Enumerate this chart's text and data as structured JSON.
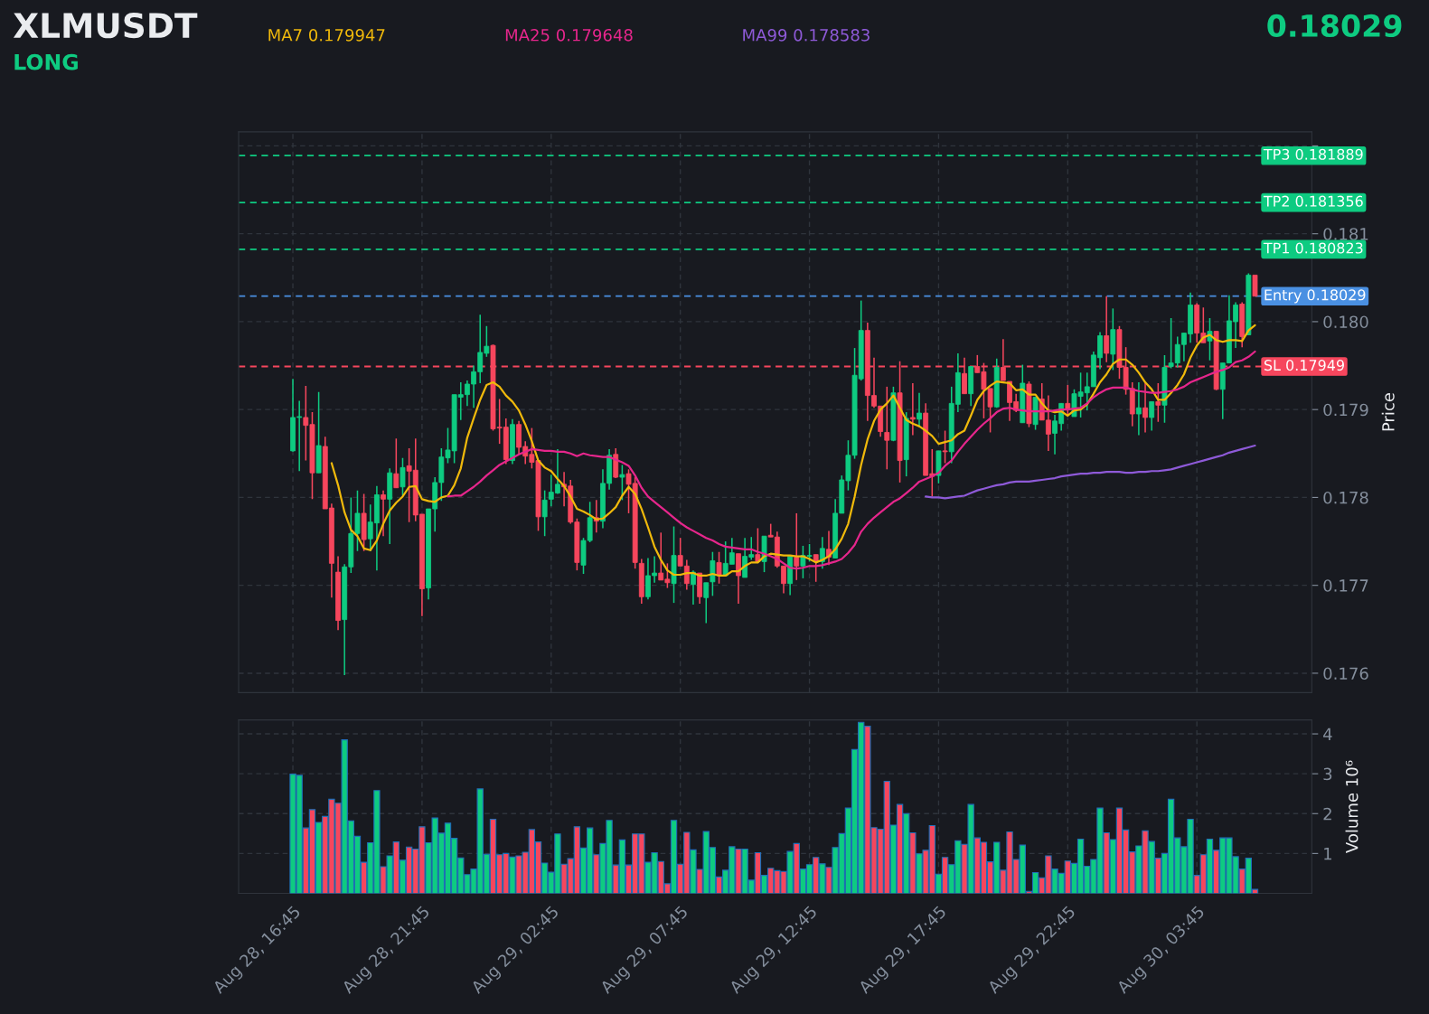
{
  "chart_data": [
    {
      "type": "candlestick",
      "title": "XLMUSDT",
      "annotations": [
        "LONG",
        "0.18029"
      ],
      "ylabel": "Price",
      "categories": [
        null,
        null,
        null,
        null,
        null,
        null,
        null,
        null,
        null,
        null,
        null,
        null,
        null,
        null,
        null,
        null,
        null,
        null,
        null,
        null,
        null,
        null,
        null,
        null,
        null,
        null,
        null,
        null,
        null,
        null,
        null,
        null,
        null,
        null,
        null,
        null,
        null,
        null,
        null,
        null,
        null,
        null,
        null,
        null,
        null,
        null,
        null,
        null,
        null,
        null,
        null,
        null,
        null,
        null,
        null,
        null,
        null,
        null,
        null,
        null,
        null,
        null,
        null,
        null,
        null,
        null,
        null,
        null,
        null,
        null,
        null,
        null,
        null,
        null,
        null,
        null,
        null,
        null,
        null,
        null,
        null,
        null,
        null,
        null,
        null,
        null,
        null,
        null,
        null,
        null,
        null,
        null,
        null,
        null,
        null,
        null,
        null,
        null,
        null,
        null,
        null,
        null,
        null,
        null,
        null,
        null,
        null,
        null,
        null,
        null,
        null,
        null,
        null,
        null,
        null,
        null,
        null,
        null,
        null,
        null,
        null,
        null,
        null,
        null,
        null,
        null,
        null,
        null,
        null,
        null,
        null,
        null,
        null,
        null,
        null,
        null,
        null,
        null,
        null,
        null,
        null,
        null,
        null,
        null,
        null,
        null,
        null,
        null,
        null,
        null
      ],
      "ohlc": [
        [
          0.17853,
          0.17935,
          0.17852,
          0.17891
        ],
        [
          0.17891,
          0.1791,
          0.1783,
          0.17892
        ],
        [
          0.17891,
          0.17927,
          0.17842,
          0.17882
        ],
        [
          0.17883,
          0.17897,
          0.17798,
          0.17828
        ],
        [
          0.17828,
          0.1792,
          0.17828,
          0.17859
        ],
        [
          0.17858,
          0.17869,
          0.17787,
          0.17787
        ],
        [
          0.17788,
          0.17793,
          0.17686,
          0.17725
        ],
        [
          0.17715,
          0.17733,
          0.17649,
          0.1766
        ],
        [
          0.17661,
          0.17724,
          0.17598,
          0.17721
        ],
        [
          0.17721,
          0.178,
          0.17714,
          0.17759
        ],
        [
          0.17759,
          0.17808,
          0.17739,
          0.17782
        ],
        [
          0.17782,
          0.17804,
          0.17739,
          0.17752
        ],
        [
          0.17753,
          0.17792,
          0.17739,
          0.17772
        ],
        [
          0.17771,
          0.17813,
          0.17717,
          0.17803
        ],
        [
          0.17803,
          0.17808,
          0.17756,
          0.17798
        ],
        [
          0.17798,
          0.17833,
          0.17747,
          0.17828
        ],
        [
          0.17827,
          0.17867,
          0.17811,
          0.17811
        ],
        [
          0.17812,
          0.17845,
          0.17802,
          0.17834
        ],
        [
          0.17836,
          0.17856,
          0.17772,
          0.1783
        ],
        [
          0.17831,
          0.17867,
          0.17773,
          0.1778
        ],
        [
          0.17781,
          0.17781,
          0.17665,
          0.17696
        ],
        [
          0.17697,
          0.17787,
          0.17684,
          0.17787
        ],
        [
          0.17787,
          0.17823,
          0.17761,
          0.17817
        ],
        [
          0.17817,
          0.17856,
          0.17796,
          0.17846
        ],
        [
          0.17845,
          0.17879,
          0.17839,
          0.17854
        ],
        [
          0.17853,
          0.17917,
          0.17839,
          0.17917
        ],
        [
          0.17914,
          0.17931,
          0.17888,
          0.17917
        ],
        [
          0.17917,
          0.17933,
          0.17904,
          0.17929
        ],
        [
          0.17929,
          0.1795,
          0.17902,
          0.17943
        ],
        [
          0.17943,
          0.18008,
          0.1793,
          0.17965
        ],
        [
          0.17964,
          0.17995,
          0.1796,
          0.17972
        ],
        [
          0.17973,
          0.17974,
          0.17876,
          0.17878
        ],
        [
          0.1788,
          0.17912,
          0.17861,
          0.17879
        ],
        [
          0.1788,
          0.1789,
          0.17838,
          0.17843
        ],
        [
          0.17842,
          0.17889,
          0.17838,
          0.17883
        ],
        [
          0.17883,
          0.17887,
          0.17849,
          0.17857
        ],
        [
          0.17858,
          0.17864,
          0.17838,
          0.17847
        ],
        [
          0.17849,
          0.17879,
          0.17833,
          0.1784
        ],
        [
          0.17842,
          0.17842,
          0.17762,
          0.17778
        ],
        [
          0.17778,
          0.17808,
          0.17756,
          0.17797
        ],
        [
          0.17798,
          0.17826,
          0.1779,
          0.17806
        ],
        [
          0.17805,
          0.17855,
          0.17804,
          0.17815
        ],
        [
          0.17815,
          0.17829,
          0.1779,
          0.17812
        ],
        [
          0.17813,
          0.1782,
          0.1777,
          0.17772
        ],
        [
          0.17772,
          0.17776,
          0.17717,
          0.17726
        ],
        [
          0.17723,
          0.17754,
          0.17713,
          0.17751
        ],
        [
          0.17751,
          0.17795,
          0.17749,
          0.17777
        ],
        [
          0.17777,
          0.17797,
          0.1776,
          0.17773
        ],
        [
          0.17773,
          0.17832,
          0.17765,
          0.17816
        ],
        [
          0.17816,
          0.17855,
          0.17809,
          0.17848
        ],
        [
          0.17849,
          0.17856,
          0.17822,
          0.17823
        ],
        [
          0.17823,
          0.17837,
          0.17797,
          0.17826
        ],
        [
          0.17827,
          0.17832,
          0.17782,
          0.17815
        ],
        [
          0.17816,
          0.17823,
          0.17719,
          0.17726
        ],
        [
          0.17725,
          0.1773,
          0.17679,
          0.17687
        ],
        [
          0.17687,
          0.17731,
          0.17684,
          0.17711
        ],
        [
          0.17711,
          0.17733,
          0.17703,
          0.17714
        ],
        [
          0.17714,
          0.1776,
          0.17706,
          0.17706
        ],
        [
          0.17707,
          0.17725,
          0.17697,
          0.17703
        ],
        [
          0.17702,
          0.17767,
          0.1768,
          0.17734
        ],
        [
          0.17734,
          0.17754,
          0.17722,
          0.17722
        ],
        [
          0.17722,
          0.17729,
          0.17695,
          0.17702
        ],
        [
          0.17701,
          0.17717,
          0.17678,
          0.17715
        ],
        [
          0.17714,
          0.17714,
          0.17679,
          0.17687
        ],
        [
          0.17686,
          0.17703,
          0.17657,
          0.17703
        ],
        [
          0.17704,
          0.17738,
          0.17688,
          0.17728
        ],
        [
          0.17726,
          0.17738,
          0.17702,
          0.17711
        ],
        [
          0.17711,
          0.1775,
          0.17711,
          0.17725
        ],
        [
          0.17724,
          0.17754,
          0.17724,
          0.17737
        ],
        [
          0.17736,
          0.17736,
          0.17679,
          0.17711
        ],
        [
          0.17709,
          0.17754,
          0.17709,
          0.17733
        ],
        [
          0.17732,
          0.17755,
          0.17729,
          0.17735
        ],
        [
          0.17735,
          0.17765,
          0.17727,
          0.17727
        ],
        [
          0.17727,
          0.17756,
          0.17715,
          0.17756
        ],
        [
          0.17757,
          0.1777,
          0.17755,
          0.17755
        ],
        [
          0.17755,
          0.17761,
          0.1772,
          0.17722
        ],
        [
          0.17722,
          0.17722,
          0.17691,
          0.17702
        ],
        [
          0.17702,
          0.17733,
          0.17689,
          0.17733
        ],
        [
          0.17732,
          0.17782,
          0.17706,
          0.17722
        ],
        [
          0.17722,
          0.17745,
          0.17708,
          0.17734
        ],
        [
          0.17733,
          0.17747,
          0.17727,
          0.17734
        ],
        [
          0.17735,
          0.17735,
          0.17704,
          0.17727
        ],
        [
          0.17727,
          0.17755,
          0.17719,
          0.17742
        ],
        [
          0.17741,
          0.17762,
          0.17723,
          0.17732
        ],
        [
          0.17731,
          0.17798,
          0.17731,
          0.17782
        ],
        [
          0.17782,
          0.17825,
          0.17782,
          0.1782
        ],
        [
          0.17819,
          0.17865,
          0.17808,
          0.17848
        ],
        [
          0.17848,
          0.1797,
          0.17844,
          0.17939
        ],
        [
          0.17935,
          0.18024,
          0.17933,
          0.1799
        ],
        [
          0.1799,
          0.17999,
          0.17887,
          0.17916
        ],
        [
          0.17916,
          0.17959,
          0.17902,
          0.17904
        ],
        [
          0.17904,
          0.17904,
          0.17869,
          0.17875
        ],
        [
          0.17874,
          0.17926,
          0.17832,
          0.17865
        ],
        [
          0.17865,
          0.17926,
          0.17864,
          0.17919
        ],
        [
          0.17919,
          0.17955,
          0.17817,
          0.17842
        ],
        [
          0.17843,
          0.17897,
          0.17824,
          0.1789
        ],
        [
          0.17891,
          0.1793,
          0.17871,
          0.17889
        ],
        [
          0.17889,
          0.17919,
          0.1788,
          0.17896
        ],
        [
          0.17896,
          0.17907,
          0.17825,
          0.17825
        ],
        [
          0.17827,
          0.17855,
          0.17801,
          0.17824
        ],
        [
          0.17825,
          0.17853,
          0.17816,
          0.17853
        ],
        [
          0.17853,
          0.17876,
          0.17839,
          0.17852
        ],
        [
          0.17852,
          0.17926,
          0.17839,
          0.17907
        ],
        [
          0.17906,
          0.17964,
          0.17897,
          0.17942
        ],
        [
          0.17941,
          0.17959,
          0.17918,
          0.17918
        ],
        [
          0.17918,
          0.17949,
          0.17904,
          0.17949
        ],
        [
          0.17949,
          0.17962,
          0.17942,
          0.17942
        ],
        [
          0.17943,
          0.17953,
          0.1789,
          0.17923
        ],
        [
          0.17924,
          0.17924,
          0.17874,
          0.17903
        ],
        [
          0.17903,
          0.17958,
          0.17902,
          0.17948
        ],
        [
          0.17948,
          0.1798,
          0.17933,
          0.17933
        ],
        [
          0.17932,
          0.17932,
          0.17887,
          0.17908
        ],
        [
          0.17909,
          0.17918,
          0.17897,
          0.17899
        ],
        [
          0.17885,
          0.17951,
          0.17885,
          0.1793
        ],
        [
          0.17929,
          0.17932,
          0.1788,
          0.17884
        ],
        [
          0.17883,
          0.17914,
          0.17877,
          0.17914
        ],
        [
          0.17912,
          0.1793,
          0.17888,
          0.17888
        ],
        [
          0.17888,
          0.17916,
          0.17853,
          0.17872
        ],
        [
          0.17873,
          0.17894,
          0.17849,
          0.17887
        ],
        [
          0.17884,
          0.17907,
          0.17876,
          0.17907
        ],
        [
          0.17907,
          0.17928,
          0.17893,
          0.179
        ],
        [
          0.17892,
          0.17923,
          0.17892,
          0.17918
        ],
        [
          0.17915,
          0.17942,
          0.17891,
          0.1792
        ],
        [
          0.17919,
          0.17942,
          0.17899,
          0.17926
        ],
        [
          0.17926,
          0.17966,
          0.17926,
          0.17962
        ],
        [
          0.17959,
          0.17988,
          0.17946,
          0.17984
        ],
        [
          0.17984,
          0.18029,
          0.17954,
          0.17964
        ],
        [
          0.17963,
          0.18015,
          0.17945,
          0.17991
        ],
        [
          0.17991,
          0.17995,
          0.17935,
          0.17948
        ],
        [
          0.17948,
          0.17971,
          0.17917,
          0.17923
        ],
        [
          0.17924,
          0.17931,
          0.17881,
          0.17895
        ],
        [
          0.17895,
          0.17931,
          0.17871,
          0.17902
        ],
        [
          0.17902,
          0.1793,
          0.17874,
          0.17891
        ],
        [
          0.17891,
          0.17909,
          0.17876,
          0.17909
        ],
        [
          0.17909,
          0.1793,
          0.17886,
          0.17905
        ],
        [
          0.17905,
          0.17962,
          0.17885,
          0.17948
        ],
        [
          0.17949,
          0.18004,
          0.17947,
          0.17953
        ],
        [
          0.17953,
          0.17983,
          0.17948,
          0.17974
        ],
        [
          0.17974,
          0.17987,
          0.17955,
          0.17987
        ],
        [
          0.17986,
          0.18033,
          0.17976,
          0.18019
        ],
        [
          0.18019,
          0.18021,
          0.17976,
          0.17987
        ],
        [
          0.17987,
          0.18016,
          0.17976,
          0.17976
        ],
        [
          0.17978,
          0.18004,
          0.17956,
          0.17989
        ],
        [
          0.17989,
          0.17989,
          0.17922,
          0.17923
        ],
        [
          0.17923,
          0.17953,
          0.17889,
          0.17953
        ],
        [
          0.17953,
          0.1803,
          0.17953,
          0.18001
        ],
        [
          0.18,
          0.18022,
          0.1797,
          0.18019
        ],
        [
          0.1802,
          0.18022,
          0.17971,
          0.17983
        ],
        [
          0.17985,
          0.18055,
          0.17985,
          0.18053
        ],
        [
          0.18053,
          0.18053,
          0.18029,
          0.18029
        ]
      ],
      "colors": [
        "#0ecb81",
        "#0ecb81",
        "#f6465d",
        "#f6465d",
        "#0ecb81",
        "#f6465d",
        "#f6465d",
        "#f6465d",
        "#0ecb81",
        "#0ecb81",
        "#0ecb81",
        "#f6465d",
        "#0ecb81",
        "#0ecb81",
        "#f6465d",
        "#0ecb81",
        "#f6465d",
        "#0ecb81",
        "#f6465d",
        "#f6465d",
        "#f6465d",
        "#0ecb81",
        "#0ecb81",
        "#0ecb81",
        "#0ecb81",
        "#0ecb81",
        "#0ecb81",
        "#0ecb81",
        "#0ecb81",
        "#0ecb81",
        "#0ecb81",
        "#f6465d",
        "#f6465d",
        "#f6465d",
        "#0ecb81",
        "#f6465d",
        "#f6465d",
        "#f6465d",
        "#f6465d",
        "#0ecb81",
        "#0ecb81",
        "#0ecb81",
        "#f6465d",
        "#f6465d",
        "#f6465d",
        "#0ecb81",
        "#0ecb81",
        "#f6465d",
        "#0ecb81",
        "#0ecb81",
        "#f6465d",
        "#0ecb81",
        "#f6465d",
        "#f6465d",
        "#f6465d",
        "#0ecb81",
        "#0ecb81",
        "#f6465d",
        "#f6465d",
        "#0ecb81",
        "#f6465d",
        "#f6465d",
        "#0ecb81",
        "#f6465d",
        "#0ecb81",
        "#0ecb81",
        "#f6465d",
        "#0ecb81",
        "#0ecb81",
        "#f6465d",
        "#0ecb81",
        "#0ecb81",
        "#f6465d",
        "#0ecb81",
        "#f6465d",
        "#f6465d",
        "#f6465d",
        "#0ecb81",
        "#f6465d",
        "#0ecb81",
        "#0ecb81",
        "#f6465d",
        "#0ecb81",
        "#f6465d",
        "#0ecb81",
        "#0ecb81",
        "#0ecb81",
        "#0ecb81",
        "#0ecb81",
        "#f6465d",
        "#f6465d",
        "#f6465d",
        "#f6465d",
        "#0ecb81",
        "#f6465d",
        "#0ecb81",
        "#f6465d",
        "#0ecb81",
        "#f6465d",
        "#f6465d",
        "#0ecb81",
        "#f6465d",
        "#0ecb81",
        "#0ecb81",
        "#f6465d",
        "#0ecb81",
        "#f6465d",
        "#f6465d",
        "#f6465d",
        "#0ecb81",
        "#f6465d",
        "#f6465d",
        "#f6465d",
        "#0ecb81",
        "#f6465d",
        "#0ecb81",
        "#f6465d",
        "#f6465d",
        "#0ecb81",
        "#0ecb81",
        "#f6465d",
        "#0ecb81",
        "#0ecb81",
        "#0ecb81",
        "#0ecb81",
        "#0ecb81",
        "#f6465d",
        "#0ecb81",
        "#f6465d",
        "#f6465d",
        "#f6465d",
        "#0ecb81",
        "#f6465d",
        "#0ecb81",
        "#f6465d",
        "#0ecb81",
        "#0ecb81",
        "#0ecb81",
        "#0ecb81",
        "#0ecb81",
        "#f6465d",
        "#f6465d",
        "#0ecb81",
        "#f6465d",
        "#0ecb81",
        "#0ecb81",
        "#0ecb81",
        "#f6465d",
        "#0ecb81",
        "#f6465d"
      ],
      "series": [
        {
          "name": "MA7 0.179947",
          "type": "line",
          "color": "#f0b90b",
          "values": [
            null,
            null,
            null,
            null,
            null,
            null,
            0.17839,
            0.17814,
            0.17783,
            0.17763,
            0.17756,
            0.17742,
            0.1774,
            0.17751,
            0.1777,
            0.17785,
            0.17794,
            0.17801,
            0.17812,
            0.17813,
            0.17798,
            0.17796,
            0.17795,
            0.178,
            0.17802,
            0.17814,
            0.17833,
            0.17868,
            0.1789,
            0.17911,
            0.17928,
            0.17931,
            0.17926,
            0.17916,
            0.17909,
            0.17899,
            0.17883,
            0.17864,
            0.17842,
            0.17834,
            0.1783,
            0.17821,
            0.17813,
            0.17801,
            0.17787,
            0.17784,
            0.1778,
            0.17775,
            0.17776,
            0.17782,
            0.17789,
            0.17802,
            0.17812,
            0.17804,
            0.17787,
            0.17766,
            0.17744,
            0.17729,
            0.17717,
            0.17712,
            0.17712,
            0.17714,
            0.17714,
            0.17711,
            0.17711,
            0.17713,
            0.17711,
            0.17711,
            0.17716,
            0.17716,
            0.17722,
            0.17726,
            0.17726,
            0.17733,
            0.17736,
            0.17735,
            0.17734,
            0.17734,
            0.17733,
            0.17733,
            0.1773,
            0.17726,
            0.17729,
            0.17733,
            0.17741,
            0.17753,
            0.1777,
            0.17801,
            0.17837,
            0.17866,
            0.17887,
            0.179,
            0.17907,
            0.17916,
            0.17902,
            0.17888,
            0.17884,
            0.17881,
            0.17876,
            0.1787,
            0.17861,
            0.17863,
            0.17865,
            0.17872,
            0.17876,
            0.17893,
            0.17911,
            0.17921,
            0.17927,
            0.17932,
            0.17931,
            0.1793,
            0.17922,
            0.17923,
            0.17917,
            0.17917,
            0.17907,
            0.17899,
            0.17897,
            0.17898,
            0.17893,
            0.17899,
            0.179,
            0.17906,
            0.17918,
            0.17931,
            0.1794,
            0.17952,
            0.17957,
            0.17957,
            0.17951,
            0.17942,
            0.17931,
            0.17923,
            0.17911,
            0.17911,
            0.17919,
            0.17928,
            0.1794,
            0.17959,
            0.17973,
            0.17982,
            0.17985,
            0.17979,
            0.17977,
            0.17979,
            0.17979,
            0.17978,
            0.1799,
            0.17996
          ]
        },
        {
          "name": "MA25 0.179648",
          "type": "line",
          "color": "#e6268c",
          "values": [
            null,
            null,
            null,
            null,
            null,
            null,
            null,
            null,
            null,
            null,
            null,
            null,
            null,
            null,
            null,
            null,
            null,
            null,
            null,
            null,
            null,
            null,
            null,
            null,
            0.17801,
            0.17802,
            0.17802,
            0.17807,
            0.17812,
            0.17818,
            0.17825,
            0.17831,
            0.17837,
            0.17841,
            0.17845,
            0.17849,
            0.17852,
            0.17855,
            0.17854,
            0.17853,
            0.17853,
            0.17852,
            0.17852,
            0.1785,
            0.17847,
            0.1785,
            0.17848,
            0.17847,
            0.17846,
            0.17846,
            0.17843,
            0.1784,
            0.17836,
            0.17825,
            0.17811,
            0.17801,
            0.17795,
            0.17789,
            0.17783,
            0.17777,
            0.17771,
            0.17766,
            0.17762,
            0.17758,
            0.17754,
            0.17751,
            0.17747,
            0.17744,
            0.17743,
            0.17742,
            0.17741,
            0.17741,
            0.17738,
            0.17736,
            0.17733,
            0.1773,
            0.17725,
            0.1772,
            0.17719,
            0.1772,
            0.17722,
            0.17722,
            0.17723,
            0.17725,
            0.17727,
            0.1773,
            0.17737,
            0.17746,
            0.17761,
            0.1777,
            0.17777,
            0.17783,
            0.17789,
            0.17795,
            0.17799,
            0.17805,
            0.17811,
            0.17818,
            0.17821,
            0.17824,
            0.17828,
            0.17836,
            0.17842,
            0.17852,
            0.17861,
            0.17869,
            0.17877,
            0.17884,
            0.1789,
            0.17897,
            0.17901,
            0.17902,
            0.179,
            0.17899,
            0.17898,
            0.17898,
            0.17898,
            0.17898,
            0.17899,
            0.179,
            0.179,
            0.17901,
            0.17902,
            0.17907,
            0.17914,
            0.17919,
            0.17923,
            0.17925,
            0.17925,
            0.17925,
            0.17923,
            0.17921,
            0.1792,
            0.17919,
            0.17919,
            0.1792,
            0.17921,
            0.17923,
            0.17926,
            0.17931,
            0.17934,
            0.17937,
            0.1794,
            0.17943,
            0.17945,
            0.17948,
            0.17954,
            0.17956,
            0.1796,
            0.17966
          ]
        },
        {
          "name": "MA99 0.178583",
          "type": "line",
          "color": "#8e5ad8",
          "values": [
            null,
            null,
            null,
            null,
            null,
            null,
            null,
            null,
            null,
            null,
            null,
            null,
            null,
            null,
            null,
            null,
            null,
            null,
            null,
            null,
            null,
            null,
            null,
            null,
            null,
            null,
            null,
            null,
            null,
            null,
            null,
            null,
            null,
            null,
            null,
            null,
            null,
            null,
            null,
            null,
            null,
            null,
            null,
            null,
            null,
            null,
            null,
            null,
            null,
            null,
            null,
            null,
            null,
            null,
            null,
            null,
            null,
            null,
            null,
            null,
            null,
            null,
            null,
            null,
            null,
            null,
            null,
            null,
            null,
            null,
            null,
            null,
            null,
            null,
            null,
            null,
            null,
            null,
            null,
            null,
            null,
            null,
            null,
            null,
            null,
            null,
            null,
            null,
            null,
            null,
            null,
            null,
            null,
            null,
            null,
            null,
            null,
            null,
            0.17801,
            0.178,
            0.178,
            0.17799,
            0.178,
            0.17801,
            0.17802,
            0.17805,
            0.17808,
            0.1781,
            0.17812,
            0.17814,
            0.17815,
            0.17817,
            0.17818,
            0.17818,
            0.17818,
            0.17819,
            0.1782,
            0.17821,
            0.17822,
            0.17824,
            0.17825,
            0.17826,
            0.17827,
            0.17827,
            0.17828,
            0.17828,
            0.17829,
            0.17829,
            0.17829,
            0.17828,
            0.17828,
            0.17829,
            0.17829,
            0.1783,
            0.1783,
            0.17831,
            0.17832,
            0.17834,
            0.17836,
            0.17838,
            0.1784,
            0.17842,
            0.17844,
            0.17846,
            0.17848,
            0.17851,
            0.17853,
            0.17855,
            0.17857,
            0.17859
          ]
        }
      ],
      "ref_lines": [
        {
          "axis": "y",
          "value": 0.181889,
          "label": "TP3 0.181889",
          "color": "#0ecb81",
          "line_style": "dashed"
        },
        {
          "axis": "y",
          "value": 0.181356,
          "label": "TP2 0.181356",
          "color": "#0ecb81",
          "line_style": "dashed"
        },
        {
          "axis": "y",
          "value": 0.180823,
          "label": "TP1 0.180823",
          "color": "#0ecb81",
          "line_style": "dashed"
        },
        {
          "axis": "y",
          "value": 0.18029,
          "label": "Entry 0.18029",
          "color": "#4a90e2",
          "line_style": "dashed"
        },
        {
          "axis": "y",
          "value": 0.17949,
          "label": "SL 0.17949",
          "color": "#f6465d",
          "line_style": "dashed"
        }
      ],
      "ylim": [
        0.17578,
        0.18216
      ],
      "yticks": [
        0.176,
        0.177,
        0.178,
        0.179,
        {
          "value": 0.18,
          "label": "0.180"
        },
        0.181,
        {
          "value": 0.182,
          "label": null
        }
      ],
      "tick_labels": "y",
      "grid": true,
      "legend": "top"
    },
    {
      "type": "bar",
      "ylabel": "Volume 10⁶",
      "categories": [
        "Aug 28, 16:45",
        null,
        null,
        null,
        null,
        null,
        null,
        null,
        null,
        null,
        null,
        null,
        null,
        null,
        null,
        null,
        null,
        null,
        null,
        null,
        "Aug 28, 21:45",
        null,
        null,
        null,
        null,
        null,
        null,
        null,
        null,
        null,
        null,
        null,
        null,
        null,
        null,
        null,
        null,
        null,
        null,
        null,
        "Aug 29, 02:45",
        null,
        null,
        null,
        null,
        null,
        null,
        null,
        null,
        null,
        null,
        null,
        null,
        null,
        null,
        null,
        null,
        null,
        null,
        null,
        "Aug 29, 07:45",
        null,
        null,
        null,
        null,
        null,
        null,
        null,
        null,
        null,
        null,
        null,
        null,
        null,
        null,
        null,
        null,
        null,
        null,
        null,
        "Aug 29, 12:45",
        null,
        null,
        null,
        null,
        null,
        null,
        null,
        null,
        null,
        null,
        null,
        null,
        null,
        null,
        null,
        null,
        null,
        null,
        null,
        "Aug 29, 17:45",
        null,
        null,
        null,
        null,
        null,
        null,
        null,
        null,
        null,
        null,
        null,
        null,
        null,
        null,
        null,
        null,
        null,
        null,
        null,
        "Aug 29, 22:45",
        null,
        null,
        null,
        null,
        null,
        null,
        null,
        null,
        null,
        null,
        null,
        null,
        null,
        null,
        null,
        null,
        null,
        null,
        null,
        "Aug 30, 03:45",
        null,
        null,
        null,
        null,
        null,
        null,
        null,
        null,
        null
      ],
      "values": [
        2.99,
        2.96,
        1.64,
        2.1,
        1.78,
        1.93,
        2.36,
        2.26,
        3.85,
        1.82,
        1.43,
        0.78,
        1.27,
        2.58,
        0.67,
        0.94,
        1.29,
        0.83,
        1.16,
        1.11,
        1.67,
        1.27,
        1.89,
        1.51,
        1.76,
        1.38,
        0.89,
        0.47,
        0.61,
        2.62,
        0.98,
        1.86,
        0.97,
        1.0,
        0.91,
        0.94,
        1.03,
        1.6,
        1.29,
        0.76,
        0.53,
        1.49,
        0.73,
        0.87,
        1.67,
        1.14,
        1.64,
        0.97,
        1.25,
        1.83,
        0.71,
        1.34,
        0.71,
        1.49,
        1.49,
        0.78,
        1.02,
        0.8,
        0.24,
        1.83,
        0.73,
        1.53,
        1.09,
        0.6,
        1.55,
        1.15,
        0.41,
        0.58,
        1.17,
        1.11,
        1.11,
        0.33,
        1.02,
        0.45,
        0.63,
        0.57,
        0.55,
        1.05,
        1.25,
        0.61,
        0.72,
        0.9,
        0.74,
        0.65,
        1.15,
        1.5,
        2.14,
        3.61,
        4.29,
        4.19,
        1.65,
        1.61,
        2.81,
        1.71,
        2.23,
        2.0,
        1.52,
        0.99,
        1.08,
        1.7,
        0.48,
        0.9,
        0.72,
        1.32,
        1.23,
        2.23,
        1.39,
        1.28,
        0.79,
        1.28,
        0.58,
        1.54,
        0.85,
        1.21,
        0.05,
        0.52,
        0.39,
        0.94,
        0.61,
        0.5,
        0.81,
        0.75,
        1.36,
        0.68,
        0.85,
        2.14,
        1.52,
        1.35,
        2.14,
        1.59,
        1.04,
        1.19,
        1.57,
        1.3,
        0.88,
        1.0,
        2.36,
        1.39,
        1.17,
        1.86,
        0.45,
        0.97,
        1.36,
        1.08,
        1.39,
        1.39,
        0.92,
        0.61,
        0.88,
        0.1
      ],
      "colors": [
        "#0ecb81",
        "#0ecb81",
        "#f6465d",
        "#f6465d",
        "#0ecb81",
        "#f6465d",
        "#f6465d",
        "#f6465d",
        "#0ecb81",
        "#0ecb81",
        "#0ecb81",
        "#f6465d",
        "#0ecb81",
        "#0ecb81",
        "#f6465d",
        "#0ecb81",
        "#f6465d",
        "#0ecb81",
        "#f6465d",
        "#f6465d",
        "#f6465d",
        "#0ecb81",
        "#0ecb81",
        "#0ecb81",
        "#0ecb81",
        "#0ecb81",
        "#0ecb81",
        "#0ecb81",
        "#0ecb81",
        "#0ecb81",
        "#0ecb81",
        "#f6465d",
        "#f6465d",
        "#f6465d",
        "#0ecb81",
        "#f6465d",
        "#f6465d",
        "#f6465d",
        "#f6465d",
        "#0ecb81",
        "#0ecb81",
        "#0ecb81",
        "#f6465d",
        "#f6465d",
        "#f6465d",
        "#0ecb81",
        "#0ecb81",
        "#f6465d",
        "#0ecb81",
        "#0ecb81",
        "#f6465d",
        "#0ecb81",
        "#f6465d",
        "#f6465d",
        "#f6465d",
        "#0ecb81",
        "#0ecb81",
        "#f6465d",
        "#f6465d",
        "#0ecb81",
        "#f6465d",
        "#f6465d",
        "#0ecb81",
        "#f6465d",
        "#0ecb81",
        "#0ecb81",
        "#f6465d",
        "#0ecb81",
        "#0ecb81",
        "#f6465d",
        "#0ecb81",
        "#0ecb81",
        "#f6465d",
        "#0ecb81",
        "#f6465d",
        "#f6465d",
        "#f6465d",
        "#0ecb81",
        "#f6465d",
        "#0ecb81",
        "#0ecb81",
        "#f6465d",
        "#0ecb81",
        "#f6465d",
        "#0ecb81",
        "#0ecb81",
        "#0ecb81",
        "#0ecb81",
        "#0ecb81",
        "#f6465d",
        "#f6465d",
        "#f6465d",
        "#f6465d",
        "#0ecb81",
        "#f6465d",
        "#0ecb81",
        "#f6465d",
        "#0ecb81",
        "#f6465d",
        "#f6465d",
        "#0ecb81",
        "#f6465d",
        "#0ecb81",
        "#0ecb81",
        "#f6465d",
        "#0ecb81",
        "#f6465d",
        "#f6465d",
        "#f6465d",
        "#0ecb81",
        "#f6465d",
        "#f6465d",
        "#f6465d",
        "#0ecb81",
        "#f6465d",
        "#0ecb81",
        "#f6465d",
        "#f6465d",
        "#0ecb81",
        "#0ecb81",
        "#f6465d",
        "#0ecb81",
        "#0ecb81",
        "#0ecb81",
        "#0ecb81",
        "#0ecb81",
        "#f6465d",
        "#0ecb81",
        "#f6465d",
        "#f6465d",
        "#f6465d",
        "#0ecb81",
        "#f6465d",
        "#0ecb81",
        "#f6465d",
        "#0ecb81",
        "#0ecb81",
        "#0ecb81",
        "#0ecb81",
        "#0ecb81",
        "#f6465d",
        "#f6465d",
        "#0ecb81",
        "#f6465d",
        "#0ecb81",
        "#0ecb81",
        "#0ecb81",
        "#f6465d",
        "#0ecb81",
        "#f6465d"
      ],
      "ylim": [
        0,
        4.35
      ],
      "yticks": [
        1,
        2,
        3,
        4
      ],
      "grid": true
    }
  ]
}
